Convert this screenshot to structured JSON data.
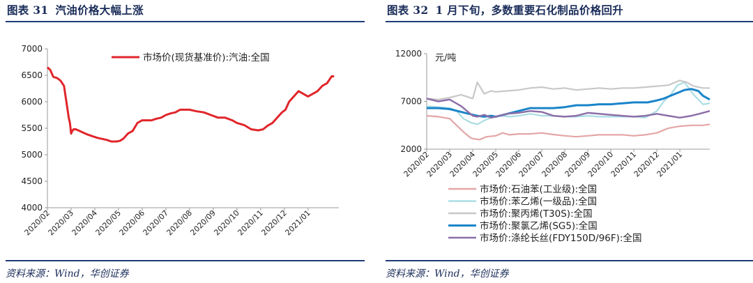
{
  "left": {
    "fig_label": "图表 31",
    "title": "汽油价格大幅上涨",
    "source": "资料来源：Wind，华创证券"
  },
  "right": {
    "fig_label": "图表 32",
    "title": "1 月下旬，多数重要石化制品价格回升",
    "source": "资料来源：Wind，华创证券"
  },
  "chart_data": [
    {
      "type": "line",
      "title": "",
      "xlabel": "",
      "ylabel": "",
      "ylim": [
        4000,
        7000
      ],
      "yticks": [
        4000,
        4500,
        5000,
        5500,
        6000,
        6500,
        7000
      ],
      "x_tick_labels": [
        "2020/02",
        "2020/03",
        "2020/04",
        "2020/05",
        "2020/06",
        "2020/07",
        "2020/08",
        "2020/09",
        "2020/10",
        "2020/11",
        "2020/12",
        "2021/01"
      ],
      "x_range": [
        0,
        12.3
      ],
      "legend_position": "top-right",
      "grid": false,
      "series": [
        {
          "name": "市场价(现货基准价):汽油:全国",
          "color": "#e0262b",
          "x": [
            0,
            0.12,
            0.25,
            0.4,
            0.55,
            0.7,
            0.8,
            0.9,
            0.95,
            1.0,
            1.05,
            1.1,
            1.2,
            1.35,
            1.5,
            1.7,
            1.9,
            2.1,
            2.3,
            2.5,
            2.7,
            2.9,
            3.05,
            3.2,
            3.4,
            3.6,
            3.8,
            4.0,
            4.2,
            4.4,
            4.6,
            4.8,
            5.0,
            5.2,
            5.4,
            5.6,
            5.8,
            6.0,
            6.3,
            6.6,
            6.9,
            7.2,
            7.5,
            7.8,
            8.0,
            8.3,
            8.6,
            8.9,
            9.1,
            9.3,
            9.5,
            9.7,
            9.9,
            10.05,
            10.2,
            10.4,
            10.6,
            10.8,
            11.0,
            11.2,
            11.4,
            11.6,
            11.8,
            12.0,
            12.1
          ],
          "y": [
            6650,
            6600,
            6470,
            6450,
            6400,
            6300,
            6000,
            5700,
            5600,
            5400,
            5450,
            5480,
            5480,
            5450,
            5420,
            5380,
            5350,
            5320,
            5300,
            5280,
            5250,
            5250,
            5260,
            5300,
            5400,
            5450,
            5600,
            5650,
            5650,
            5650,
            5680,
            5700,
            5750,
            5780,
            5800,
            5850,
            5850,
            5850,
            5820,
            5800,
            5750,
            5700,
            5700,
            5650,
            5600,
            5560,
            5480,
            5460,
            5480,
            5550,
            5600,
            5700,
            5800,
            5850,
            6000,
            6100,
            6200,
            6150,
            6100,
            6150,
            6200,
            6300,
            6350,
            6480,
            6480
          ]
        }
      ]
    },
    {
      "type": "line",
      "title": "",
      "xlabel": "",
      "ylabel": "",
      "unit_label": "元/吨",
      "ylim": [
        2000,
        12000
      ],
      "yticks": [
        2000,
        7000,
        12000
      ],
      "x_tick_labels": [
        "2020/02",
        "2020/03",
        "2020/04",
        "2020/05",
        "2020/06",
        "2020/07",
        "2020/08",
        "2020/09",
        "2020/10",
        "2020/11",
        "2020/12",
        "2021/01"
      ],
      "x_range": [
        0,
        12.3
      ],
      "legend_position": "bottom",
      "grid": false,
      "series": [
        {
          "name": "市场价:石油苯(工业级):全国",
          "color": "#e4a6a6",
          "x": [
            0,
            0.5,
            1.0,
            1.3,
            1.6,
            1.9,
            2.0,
            2.3,
            2.6,
            3.0,
            3.3,
            3.6,
            4.0,
            4.5,
            5.0,
            5.3,
            5.6,
            6.0,
            6.5,
            7.0,
            7.5,
            8.0,
            8.5,
            9.0,
            9.5,
            10.0,
            10.5,
            11.0,
            11.5,
            12.0,
            12.3
          ],
          "y": [
            5500,
            5400,
            5200,
            4500,
            3800,
            3200,
            3100,
            3000,
            3300,
            3400,
            3700,
            3500,
            3600,
            3600,
            3700,
            3600,
            3500,
            3400,
            3300,
            3400,
            3500,
            3500,
            3500,
            3400,
            3500,
            3700,
            4200,
            4400,
            4500,
            4500,
            4600
          ]
        },
        {
          "name": "市场价:苯乙烯(一级品):全国",
          "color": "#a9dde3",
          "x": [
            0,
            0.5,
            1.0,
            1.3,
            1.6,
            1.9,
            2.2,
            2.5,
            2.8,
            3.2,
            3.6,
            4.0,
            4.5,
            5.0,
            5.5,
            6.0,
            6.5,
            7.0,
            7.5,
            8.0,
            8.5,
            9.0,
            9.5,
            10.0,
            10.3,
            10.6,
            10.9,
            11.2,
            11.6,
            12.0,
            12.3
          ],
          "y": [
            6500,
            6400,
            6300,
            6000,
            5200,
            4800,
            4600,
            5000,
            5300,
            5500,
            5400,
            5500,
            5700,
            5500,
            5500,
            5400,
            5400,
            5500,
            5400,
            5400,
            5400,
            5400,
            5300,
            6000,
            7000,
            7700,
            8700,
            9000,
            7700,
            6700,
            6800
          ]
        },
        {
          "name": "市场价:聚丙烯(T30S):全国",
          "color": "#c8c8c8",
          "x": [
            0,
            0.5,
            1.0,
            1.5,
            2.0,
            2.2,
            2.5,
            2.8,
            3.0,
            3.5,
            4.0,
            4.5,
            5.0,
            5.5,
            6.0,
            6.5,
            7.0,
            7.5,
            8.0,
            8.5,
            9.0,
            9.5,
            10.0,
            10.5,
            11.0,
            11.3,
            11.6,
            12.0,
            12.3
          ],
          "y": [
            7300,
            7200,
            7400,
            7700,
            7300,
            9000,
            7800,
            8100,
            8000,
            8100,
            8200,
            8400,
            8500,
            8300,
            8400,
            8200,
            8300,
            8400,
            8300,
            8400,
            8400,
            8500,
            8600,
            8700,
            9200,
            9000,
            8600,
            8400,
            8400
          ]
        },
        {
          "name": "市场价:聚氯乙烯(SG5):全国",
          "color": "#1a84c9",
          "x": [
            0,
            0.5,
            1.0,
            1.5,
            2.0,
            2.2,
            2.5,
            2.8,
            3.0,
            3.5,
            4.0,
            4.5,
            5.0,
            5.5,
            6.0,
            6.5,
            7.0,
            7.5,
            8.0,
            8.5,
            9.0,
            9.3,
            9.6,
            10.0,
            10.3,
            10.6,
            10.9,
            11.2,
            11.5,
            11.8,
            12.0,
            12.3
          ],
          "y": [
            6300,
            6300,
            6200,
            5900,
            5600,
            5500,
            5400,
            5500,
            5400,
            5700,
            6000,
            6300,
            6300,
            6300,
            6400,
            6600,
            6600,
            6700,
            6700,
            6800,
            6900,
            6900,
            6900,
            7100,
            7300,
            7600,
            7900,
            8200,
            8300,
            8100,
            7600,
            7200
          ]
        },
        {
          "name": "市场价:涤纶长丝(FDY150D/96F):全国",
          "color": "#8c6fa8",
          "x": [
            0,
            0.5,
            1.0,
            1.5,
            2.0,
            2.2,
            2.5,
            2.8,
            3.0,
            3.5,
            4.0,
            4.5,
            5.0,
            5.5,
            6.0,
            6.5,
            7.0,
            7.5,
            8.0,
            8.5,
            9.0,
            9.5,
            10.0,
            10.5,
            11.0,
            11.5,
            12.0,
            12.3
          ],
          "y": [
            7300,
            7000,
            7200,
            6500,
            5500,
            5400,
            5600,
            5300,
            5400,
            5700,
            5800,
            6000,
            5900,
            5500,
            5400,
            5500,
            5800,
            5700,
            5600,
            5500,
            5400,
            5500,
            5700,
            5500,
            5300,
            5500,
            5800,
            6000
          ]
        }
      ]
    }
  ]
}
